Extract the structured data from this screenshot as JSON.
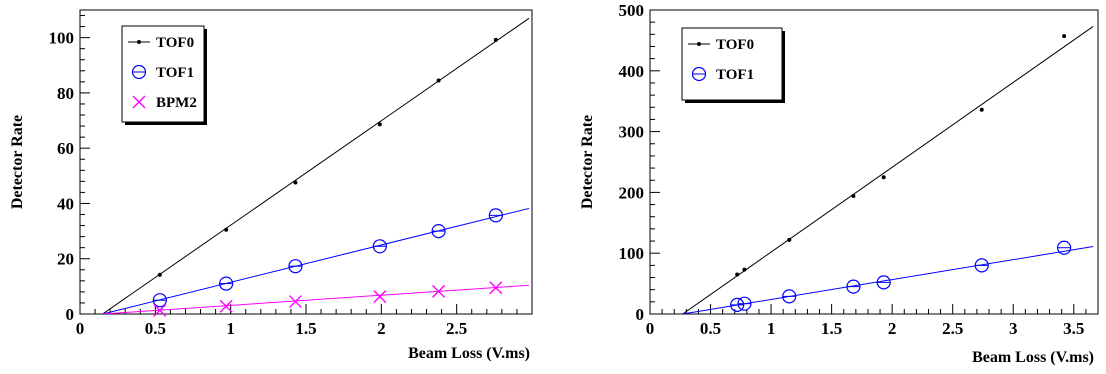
{
  "chart_data": [
    {
      "type": "scatter",
      "xlabel": "Beam Loss (V.ms)",
      "ylabel": "Detector Rate",
      "xlim": [
        0,
        3.0
      ],
      "ylim": [
        0,
        110
      ],
      "xticks": [
        0,
        0.5,
        1,
        1.5,
        2,
        2.5
      ],
      "xtick_labels": [
        "0",
        "0.5",
        "1",
        "1.5",
        "2",
        "2.5"
      ],
      "yticks": [
        0,
        20,
        40,
        60,
        80,
        100
      ],
      "ytick_labels": [
        "0",
        "20",
        "40",
        "60",
        "80",
        "100"
      ],
      "legend": "top-left",
      "series": [
        {
          "name": "TOF0",
          "marker": "dot",
          "color": "#000000",
          "x": [
            0.53,
            0.97,
            1.43,
            1.99,
            2.38,
            2.76
          ],
          "y": [
            14.2,
            30.5,
            47.6,
            68.6,
            84.5,
            99.2
          ],
          "fit": {
            "x": [
              0.15,
              2.98
            ],
            "y": [
              0,
              107
            ]
          }
        },
        {
          "name": "TOF1",
          "marker": "circle",
          "color": "#0000ff",
          "x": [
            0.53,
            0.97,
            1.43,
            1.99,
            2.38,
            2.76
          ],
          "y": [
            5.0,
            11.0,
            17.3,
            24.5,
            30.0,
            35.7
          ],
          "fit": {
            "x": [
              0.15,
              2.98
            ],
            "y": [
              0,
              38.2
            ]
          }
        },
        {
          "name": "BPM2",
          "marker": "cross",
          "color": "#ff00ff",
          "x": [
            0.53,
            0.97,
            1.43,
            1.99,
            2.38,
            2.76
          ],
          "y": [
            1.3,
            2.8,
            4.5,
            6.3,
            8.2,
            9.5
          ],
          "fit": {
            "x": [
              0.15,
              2.98
            ],
            "y": [
              0,
              10.4
            ]
          }
        }
      ]
    },
    {
      "type": "scatter",
      "xlabel": "Beam Loss (V.ms)",
      "ylabel": "Detector Rate",
      "xlim": [
        0,
        3.7
      ],
      "ylim": [
        0,
        500
      ],
      "xticks": [
        0,
        0.5,
        1,
        1.5,
        2,
        2.5,
        3,
        3.5
      ],
      "xtick_labels": [
        "0",
        "0.5",
        "1",
        "1.5",
        "2",
        "2.5",
        "3",
        "3.5"
      ],
      "yticks": [
        0,
        100,
        200,
        300,
        400,
        500
      ],
      "ytick_labels": [
        "0",
        "100",
        "200",
        "300",
        "400",
        "500"
      ],
      "legend": "top-left",
      "series": [
        {
          "name": "TOF0",
          "marker": "dot",
          "color": "#000000",
          "x": [
            0.72,
            0.78,
            1.15,
            1.68,
            1.93,
            2.74,
            3.42
          ],
          "y": [
            65,
            73,
            122,
            194,
            225,
            336,
            457
          ],
          "fit": {
            "x": [
              0.27,
              3.66
            ],
            "y": [
              0,
              473
            ]
          }
        },
        {
          "name": "TOF1",
          "marker": "circle",
          "color": "#0000ff",
          "x": [
            0.72,
            0.78,
            1.15,
            1.68,
            1.93,
            2.74,
            3.42
          ],
          "y": [
            15,
            17,
            29,
            45,
            52,
            80,
            109
          ],
          "fit": {
            "x": [
              0.27,
              3.66
            ],
            "y": [
              0,
              111
            ]
          }
        }
      ]
    }
  ]
}
